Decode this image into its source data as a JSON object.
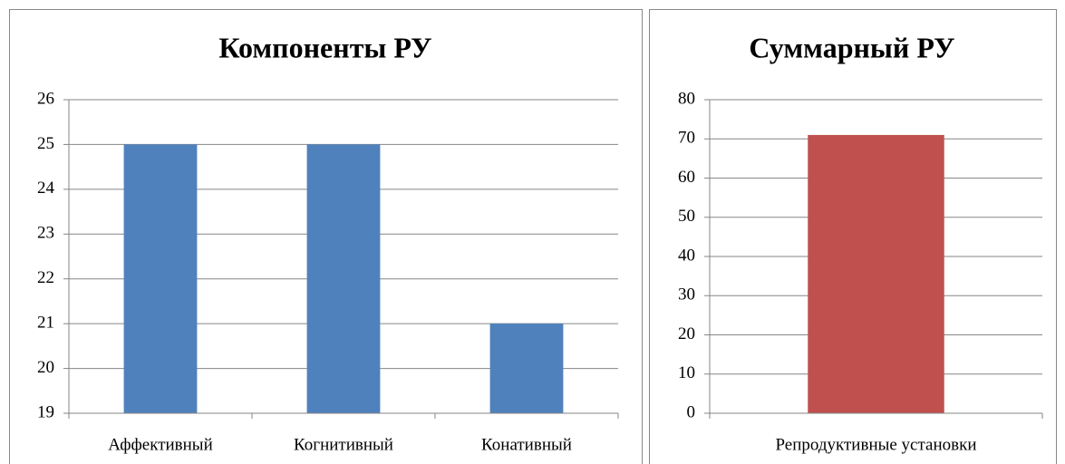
{
  "chart_data": [
    {
      "type": "bar",
      "title": "Компоненты РУ",
      "categories": [
        "Аффективный",
        "Когнитивный",
        "Конативный"
      ],
      "values": [
        25,
        25,
        21
      ],
      "color": "#4f81bd",
      "ylim": [
        19,
        26
      ],
      "yticks": [
        19,
        20,
        21,
        22,
        23,
        24,
        25,
        26
      ],
      "grid": true
    },
    {
      "type": "bar",
      "title": "Суммарный РУ",
      "categories": [
        "Репродуктивные установки"
      ],
      "values": [
        71
      ],
      "color": "#c0504d",
      "ylim": [
        0,
        80
      ],
      "yticks": [
        0,
        10,
        20,
        30,
        40,
        50,
        60,
        70,
        80
      ],
      "grid": true
    }
  ]
}
